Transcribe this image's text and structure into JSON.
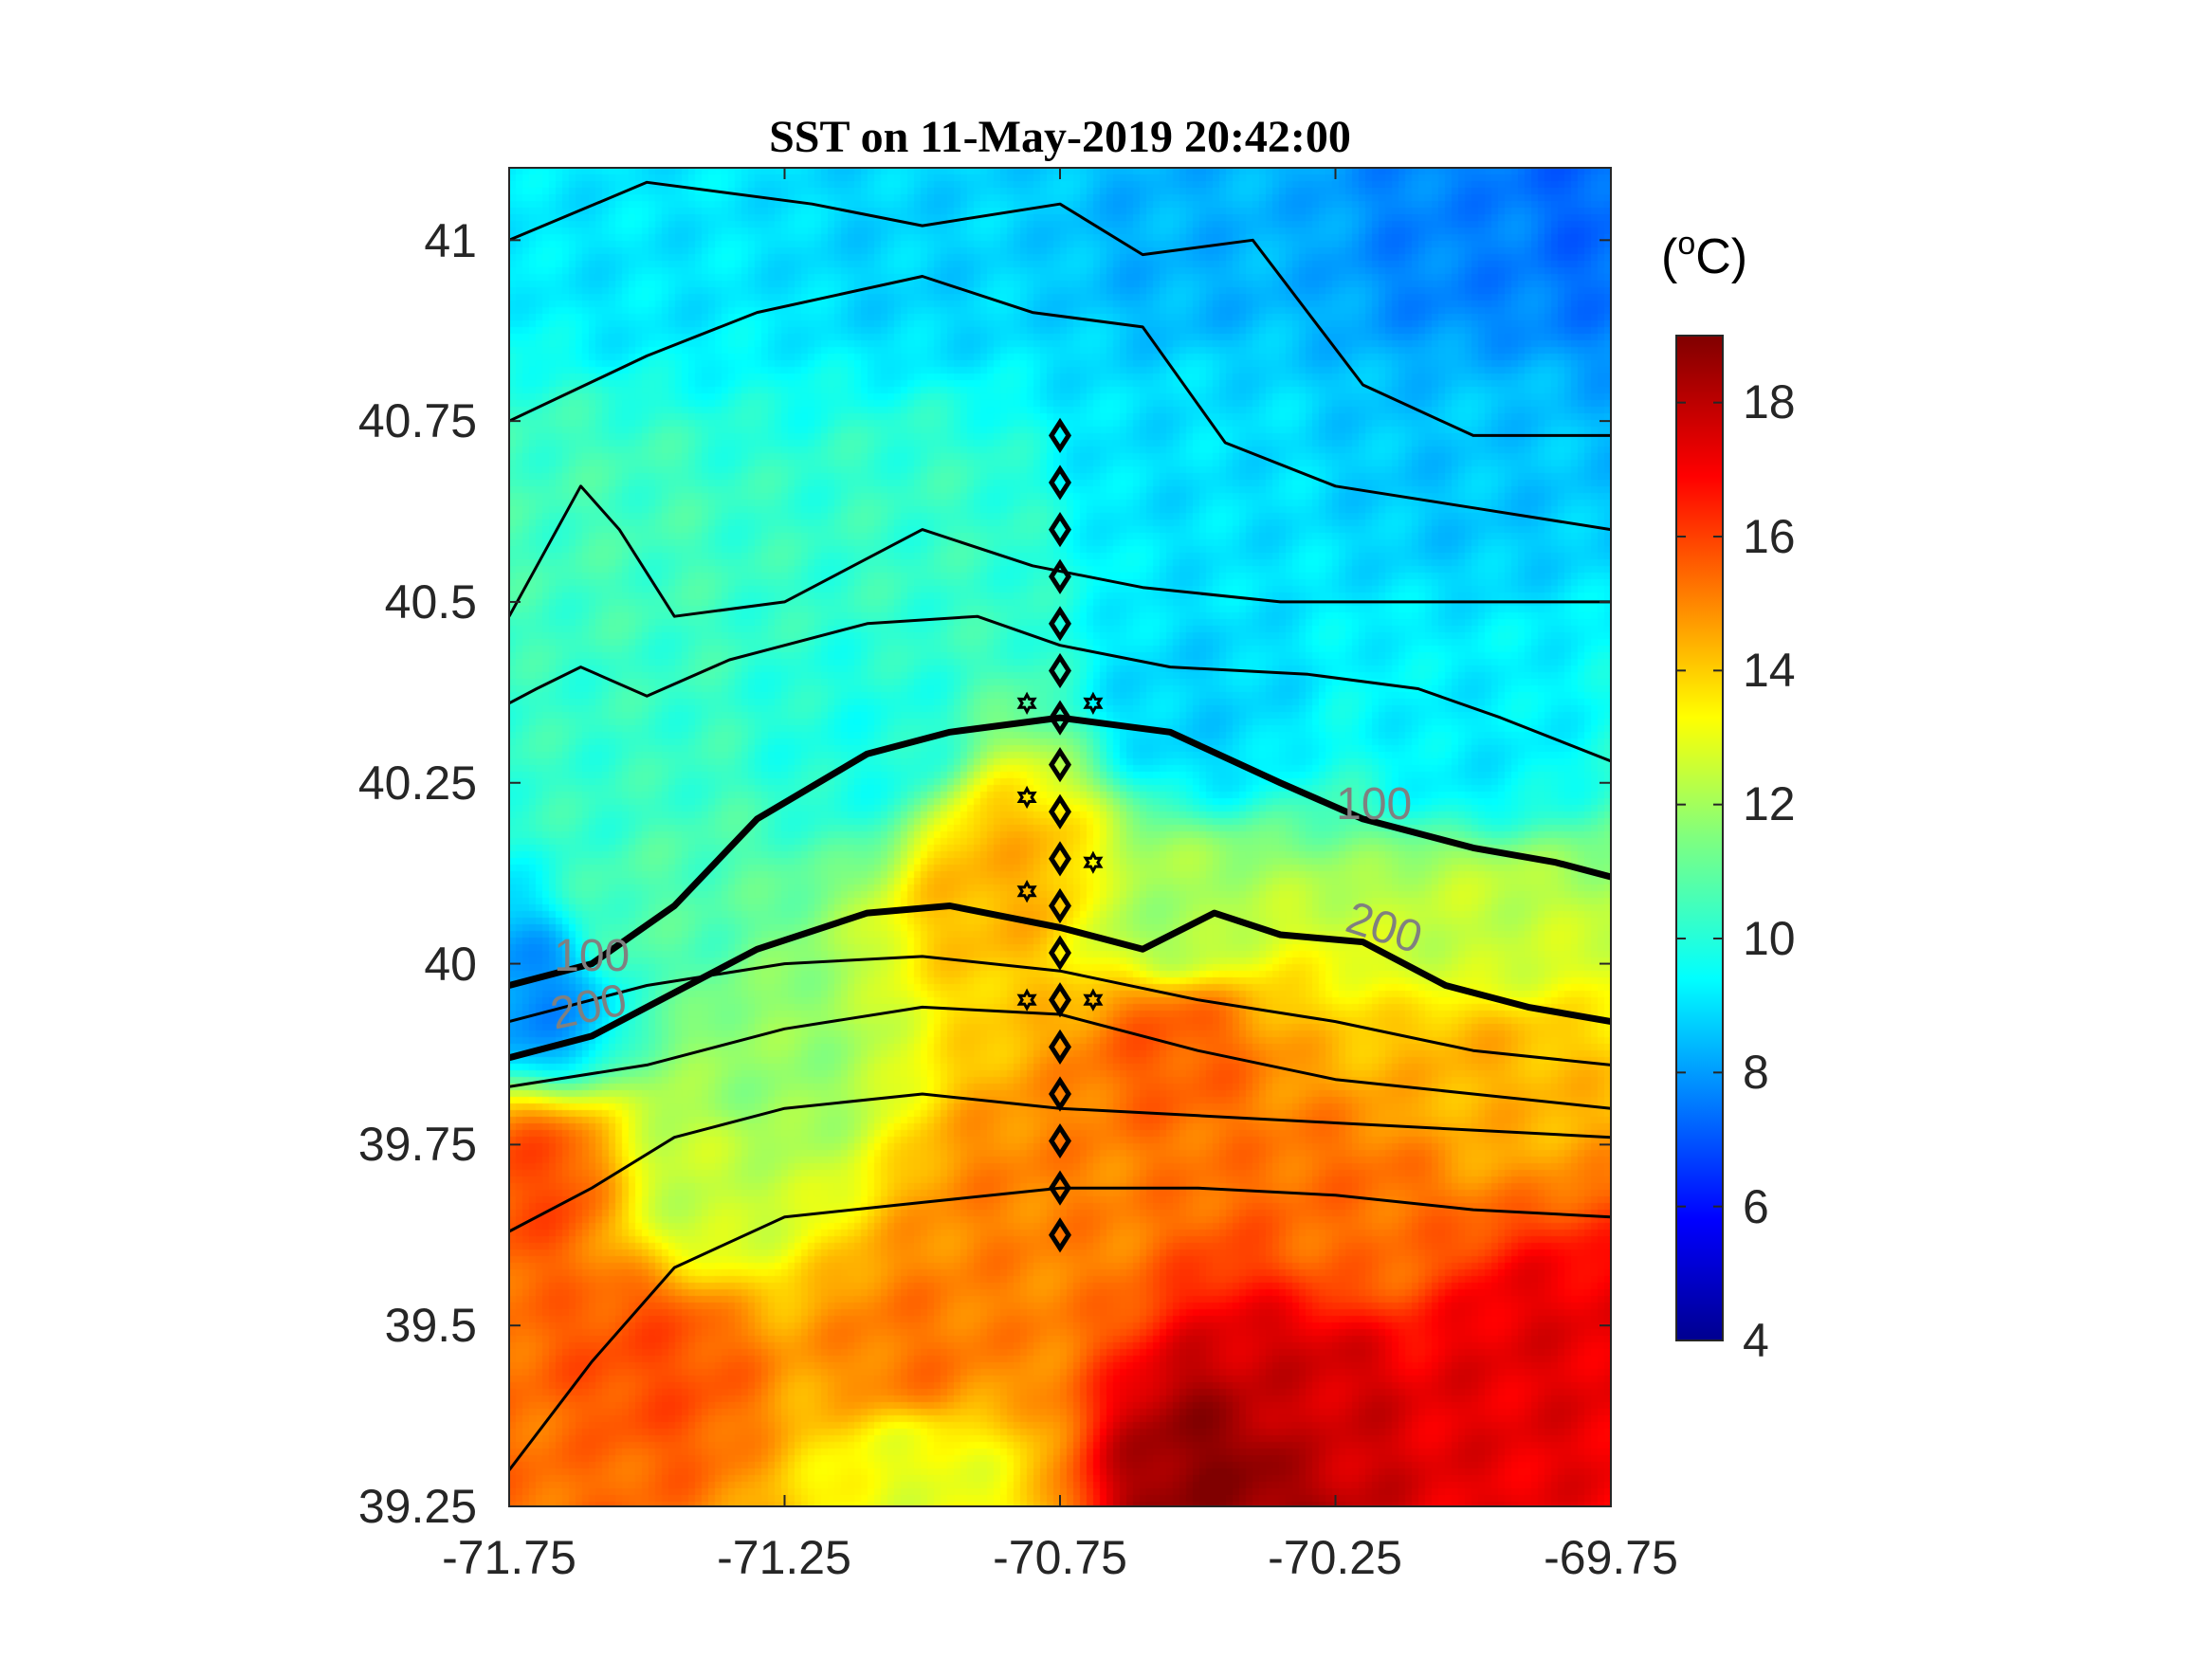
{
  "chart_data": {
    "type": "heatmap",
    "title": "SST on 11-May-2019 20:42:00",
    "xlabel": "",
    "ylabel": "",
    "xlim": [
      -71.75,
      -69.75
    ],
    "ylim": [
      39.25,
      41.1
    ],
    "xticks": [
      "-71.75",
      "-71.25",
      "-70.75",
      "-70.25",
      "-69.75"
    ],
    "yticks": [
      "39.25",
      "39.5",
      "39.75",
      "40",
      "40.25",
      "40.5",
      "40.75",
      "41"
    ],
    "colorbar": {
      "unit_base": "(",
      "unit_sup": "o",
      "unit_rest": "C)",
      "range": [
        4,
        19
      ],
      "ticks": [
        "4",
        "6",
        "8",
        "10",
        "12",
        "14",
        "16",
        "18"
      ],
      "colormap": "jet"
    },
    "contour_labels": [
      {
        "text": "100",
        "lon": -71.6,
        "lat": 39.99
      },
      {
        "text": "200",
        "lon": -71.6,
        "lat": 39.92
      },
      {
        "text": "100",
        "lon": -70.18,
        "lat": 40.2
      },
      {
        "text": "200",
        "lon": -70.17,
        "lat": 40.03
      }
    ],
    "stations_diamond": {
      "lon": -70.75,
      "lat": [
        40.73,
        40.665,
        40.6,
        40.535,
        40.47,
        40.405,
        40.34,
        40.275,
        40.21,
        40.145,
        40.08,
        40.015,
        39.95,
        39.885,
        39.82,
        39.755,
        39.69,
        39.625
      ]
    },
    "stations_star": [
      {
        "lon": -70.81,
        "lat": 40.36
      },
      {
        "lon": -70.69,
        "lat": 40.36
      },
      {
        "lon": -70.81,
        "lat": 40.23
      },
      {
        "lon": -70.69,
        "lat": 40.14
      },
      {
        "lon": -70.81,
        "lat": 40.1
      },
      {
        "lon": -70.81,
        "lat": 39.95
      },
      {
        "lon": -70.69,
        "lat": 39.95
      }
    ],
    "isobaths_bold": [
      {
        "name": "100",
        "points": [
          [
            -71.75,
            39.97
          ],
          [
            -71.6,
            40.0
          ],
          [
            -71.45,
            40.08
          ],
          [
            -71.3,
            40.2
          ],
          [
            -71.1,
            40.29
          ],
          [
            -70.95,
            40.32
          ],
          [
            -70.75,
            40.34
          ],
          [
            -70.55,
            40.32
          ],
          [
            -70.35,
            40.25
          ],
          [
            -70.2,
            40.2
          ],
          [
            -70.0,
            40.16
          ],
          [
            -69.85,
            40.14
          ],
          [
            -69.75,
            40.12
          ]
        ]
      },
      {
        "name": "200",
        "points": [
          [
            -71.75,
            39.87
          ],
          [
            -71.6,
            39.9
          ],
          [
            -71.45,
            39.96
          ],
          [
            -71.3,
            40.02
          ],
          [
            -71.1,
            40.07
          ],
          [
            -70.95,
            40.08
          ],
          [
            -70.75,
            40.05
          ],
          [
            -70.6,
            40.02
          ],
          [
            -70.47,
            40.07
          ],
          [
            -70.35,
            40.04
          ],
          [
            -70.2,
            40.03
          ],
          [
            -70.05,
            39.97
          ],
          [
            -69.9,
            39.94
          ],
          [
            -69.75,
            39.92
          ]
        ]
      }
    ],
    "isobaths_thin": [
      [
        [
          -71.75,
          40.36
        ],
        [
          -71.7,
          40.38
        ],
        [
          -71.62,
          40.41
        ],
        [
          -71.5,
          40.37
        ],
        [
          -71.35,
          40.42
        ],
        [
          -71.1,
          40.47
        ],
        [
          -70.9,
          40.48
        ],
        [
          -70.75,
          40.44
        ],
        [
          -70.55,
          40.41
        ],
        [
          -70.3,
          40.4
        ],
        [
          -70.1,
          40.38
        ],
        [
          -69.95,
          40.34
        ],
        [
          -69.75,
          40.28
        ]
      ],
      [
        [
          -71.75,
          40.48
        ],
        [
          -71.62,
          40.66
        ],
        [
          -71.55,
          40.6
        ],
        [
          -71.45,
          40.48
        ],
        [
          -71.25,
          40.5
        ],
        [
          -71.0,
          40.6
        ],
        [
          -70.8,
          40.55
        ],
        [
          -70.6,
          40.52
        ],
        [
          -70.35,
          40.5
        ],
        [
          -70.1,
          40.5
        ],
        [
          -69.75,
          40.5
        ]
      ],
      [
        [
          -71.75,
          40.75
        ],
        [
          -71.5,
          40.84
        ],
        [
          -71.3,
          40.9
        ],
        [
          -71.0,
          40.95
        ],
        [
          -70.8,
          40.9
        ],
        [
          -70.6,
          40.88
        ],
        [
          -70.45,
          40.72
        ],
        [
          -70.25,
          40.66
        ],
        [
          -70.0,
          40.63
        ],
        [
          -69.75,
          40.6
        ]
      ],
      [
        [
          -71.75,
          41.0
        ],
        [
          -71.5,
          41.08
        ],
        [
          -71.2,
          41.05
        ],
        [
          -71.0,
          41.02
        ],
        [
          -70.75,
          41.05
        ],
        [
          -70.6,
          40.98
        ],
        [
          -70.4,
          41.0
        ],
        [
          -70.2,
          40.8
        ],
        [
          -70.0,
          40.73
        ],
        [
          -69.8,
          40.73
        ],
        [
          -69.75,
          40.73
        ]
      ],
      [
        [
          -71.75,
          39.92
        ],
        [
          -71.5,
          39.97
        ],
        [
          -71.25,
          40.0
        ],
        [
          -71.0,
          40.01
        ],
        [
          -70.75,
          39.99
        ],
        [
          -70.5,
          39.95
        ],
        [
          -70.25,
          39.92
        ],
        [
          -70.0,
          39.88
        ],
        [
          -69.75,
          39.86
        ]
      ],
      [
        [
          -71.75,
          39.83
        ],
        [
          -71.5,
          39.86
        ],
        [
          -71.25,
          39.91
        ],
        [
          -71.0,
          39.94
        ],
        [
          -70.75,
          39.93
        ],
        [
          -70.5,
          39.88
        ],
        [
          -70.25,
          39.84
        ],
        [
          -70.0,
          39.82
        ],
        [
          -69.75,
          39.8
        ]
      ],
      [
        [
          -71.75,
          39.63
        ],
        [
          -71.6,
          39.69
        ],
        [
          -71.45,
          39.76
        ],
        [
          -71.25,
          39.8
        ],
        [
          -71.0,
          39.82
        ],
        [
          -70.75,
          39.8
        ],
        [
          -70.5,
          39.79
        ],
        [
          -70.25,
          39.78
        ],
        [
          -70.0,
          39.77
        ],
        [
          -69.75,
          39.76
        ]
      ],
      [
        [
          -71.75,
          39.3
        ],
        [
          -71.6,
          39.45
        ],
        [
          -71.45,
          39.58
        ],
        [
          -71.25,
          39.65
        ],
        [
          -71.0,
          39.67
        ],
        [
          -70.75,
          39.69
        ],
        [
          -70.5,
          39.69
        ],
        [
          -70.25,
          39.68
        ],
        [
          -70.0,
          39.66
        ],
        [
          -69.75,
          39.65
        ]
      ]
    ],
    "sst_field": {
      "description_levels": "smoothed from the image",
      "control_points": [
        {
          "lon": -71.5,
          "lat": 41.0,
          "value": 9.3
        },
        {
          "lon": -71.0,
          "lat": 41.0,
          "value": 9.0
        },
        {
          "lon": -70.5,
          "lat": 41.0,
          "value": 8.5
        },
        {
          "lon": -70.0,
          "lat": 41.0,
          "value": 7.8
        },
        {
          "lon": -69.8,
          "lat": 41.05,
          "value": 7.4
        },
        {
          "lon": -71.6,
          "lat": 40.6,
          "value": 10.6
        },
        {
          "lon": -71.0,
          "lat": 40.6,
          "value": 10.4
        },
        {
          "lon": -70.5,
          "lat": 40.7,
          "value": 9.2
        },
        {
          "lon": -70.0,
          "lat": 40.7,
          "value": 8.8
        },
        {
          "lon": -71.6,
          "lat": 40.3,
          "value": 10.4
        },
        {
          "lon": -71.1,
          "lat": 40.3,
          "value": 10.0
        },
        {
          "lon": -70.5,
          "lat": 40.35,
          "value": 9.0
        },
        {
          "lon": -70.0,
          "lat": 40.3,
          "value": 9.4
        },
        {
          "lon": -71.5,
          "lat": 40.05,
          "value": 10.8
        },
        {
          "lon": -70.85,
          "lat": 40.12,
          "value": 14.5
        },
        {
          "lon": -70.55,
          "lat": 40.05,
          "value": 12.0
        },
        {
          "lon": -70.0,
          "lat": 40.05,
          "value": 12.5
        },
        {
          "lon": -71.7,
          "lat": 39.95,
          "value": 8.0
        },
        {
          "lon": -71.3,
          "lat": 39.85,
          "value": 11.8
        },
        {
          "lon": -70.55,
          "lat": 39.9,
          "value": 15.8
        },
        {
          "lon": -70.0,
          "lat": 39.85,
          "value": 14.5
        },
        {
          "lon": -71.7,
          "lat": 39.7,
          "value": 16.0
        },
        {
          "lon": -71.4,
          "lat": 39.7,
          "value": 12.5
        },
        {
          "lon": -70.8,
          "lat": 39.65,
          "value": 15.2
        },
        {
          "lon": -70.2,
          "lat": 39.65,
          "value": 15.5
        },
        {
          "lon": -71.5,
          "lat": 39.45,
          "value": 16.0
        },
        {
          "lon": -71.0,
          "lat": 39.45,
          "value": 15.4
        },
        {
          "lon": -70.3,
          "lat": 39.4,
          "value": 17.8
        },
        {
          "lon": -69.9,
          "lat": 39.45,
          "value": 17.5
        },
        {
          "lon": -70.45,
          "lat": 39.3,
          "value": 18.8
        },
        {
          "lon": -71.0,
          "lat": 39.3,
          "value": 13.0
        },
        {
          "lon": -71.7,
          "lat": 39.3,
          "value": 15.5
        }
      ]
    }
  }
}
